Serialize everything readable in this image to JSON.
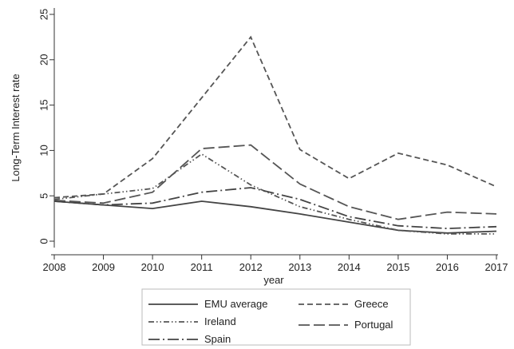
{
  "chart_data": {
    "type": "line",
    "xlabel": "year",
    "ylabel": "Long-Term Interest rate",
    "xlim": [
      2008,
      2017
    ],
    "ylim": [
      0,
      25
    ],
    "xticks": [
      "2008",
      "2009",
      "2010",
      "2011",
      "2012",
      "2013",
      "2014",
      "2015",
      "2016",
      "2017"
    ],
    "yticks": [
      "0",
      "5",
      "10",
      "15",
      "20",
      "25"
    ],
    "grid": false,
    "legend_position": "bottom",
    "x": [
      2008,
      2009,
      2010,
      2011,
      2012,
      2013,
      2014,
      2015,
      2016,
      2017
    ],
    "series": [
      {
        "name": "EMU average",
        "style": "solid",
        "color": "#444444",
        "values": [
          4.4,
          4.0,
          3.6,
          4.4,
          3.8,
          3.0,
          2.1,
          1.2,
          0.9,
          1.1
        ]
      },
      {
        "name": "Greece",
        "style": "short-dash",
        "color": "#555555",
        "values": [
          4.8,
          5.2,
          9.1,
          15.8,
          22.5,
          10.1,
          6.9,
          9.7,
          8.4,
          6.0
        ]
      },
      {
        "name": "Ireland",
        "style": "dash-dot-dot",
        "color": "#555555",
        "values": [
          4.6,
          5.2,
          5.8,
          9.6,
          6.2,
          3.8,
          2.4,
          1.2,
          0.8,
          0.8
        ]
      },
      {
        "name": "Portugal",
        "style": "long-dash",
        "color": "#555555",
        "values": [
          4.5,
          4.2,
          5.4,
          10.2,
          10.6,
          6.3,
          3.8,
          2.4,
          3.2,
          3.0
        ]
      },
      {
        "name": "Spain",
        "style": "long-dash-dot",
        "color": "#444444",
        "values": [
          4.4,
          4.0,
          4.2,
          5.4,
          5.9,
          4.6,
          2.7,
          1.7,
          1.4,
          1.6
        ]
      }
    ]
  }
}
